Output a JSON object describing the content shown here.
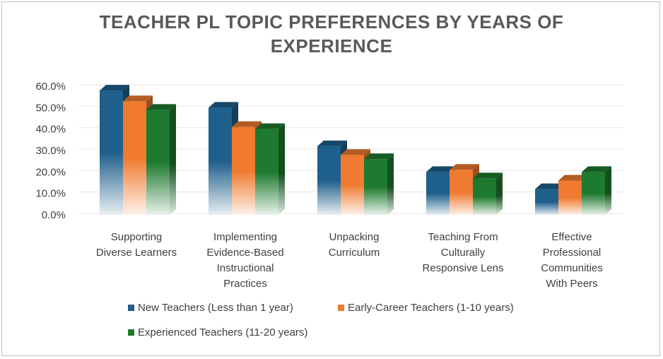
{
  "chart_data": {
    "type": "bar",
    "title": "TEACHER PL TOPIC PREFERENCES BY YEARS OF EXPERIENCE",
    "title_lines": [
      "TEACHER PL TOPIC PREFERENCES BY YEARS OF",
      "EXPERIENCE"
    ],
    "categories": [
      [
        "Supporting",
        "Diverse Learners"
      ],
      [
        "Implementing",
        "Evidence-Based",
        "Instructional",
        "Practices"
      ],
      [
        "Unpacking",
        "Curriculum"
      ],
      [
        "Teaching From",
        "Culturally",
        "Responsive Lens"
      ],
      [
        "Effective",
        "Professional",
        "Communities",
        "With Peers"
      ]
    ],
    "series": [
      {
        "name": "New Teachers (Less than 1 year)",
        "color": "#1f5f8b",
        "values": [
          58,
          50,
          32,
          20,
          12
        ]
      },
      {
        "name": "Early-Career Teachers (1-10 years)",
        "color": "#f07a30",
        "values": [
          53,
          41,
          28,
          21,
          16
        ]
      },
      {
        "name": "Experienced Teachers (11-20 years)",
        "color": "#1e7a2e",
        "values": [
          49,
          40,
          26,
          17,
          20
        ]
      }
    ],
    "yticks": [
      "0.0%",
      "10.0%",
      "20.0%",
      "30.0%",
      "40.0%",
      "50.0%",
      "60.0%"
    ],
    "ylim": [
      0,
      60
    ],
    "grid": true,
    "legend_position": "bottom",
    "style": "3d-clustered-column"
  }
}
